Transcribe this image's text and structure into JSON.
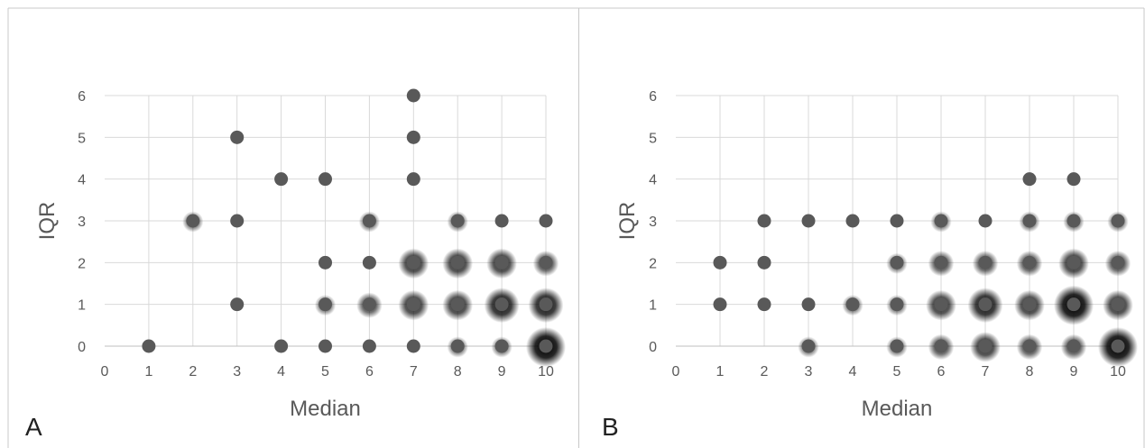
{
  "chart_data": [
    {
      "type": "scatter",
      "panel_label": "A",
      "title": "",
      "xlabel": "Median",
      "ylabel": "IQR",
      "xlim": [
        0,
        10
      ],
      "ylim": [
        0,
        6
      ],
      "xticks": [
        "0",
        "1",
        "2",
        "3",
        "4",
        "5",
        "6",
        "7",
        "8",
        "9",
        "10"
      ],
      "yticks": [
        "0",
        "1",
        "2",
        "3",
        "4",
        "5",
        "6"
      ],
      "grid": true,
      "legend": "none",
      "marker_color": "#595959",
      "points": [
        {
          "x": 1,
          "y": 0,
          "shadow": 0
        },
        {
          "x": 2,
          "y": 3,
          "shadow": 1
        },
        {
          "x": 3,
          "y": 1,
          "shadow": 0
        },
        {
          "x": 3,
          "y": 3,
          "shadow": 0
        },
        {
          "x": 3,
          "y": 5,
          "shadow": 0
        },
        {
          "x": 4,
          "y": 0,
          "shadow": 0
        },
        {
          "x": 4,
          "y": 4,
          "shadow": 0
        },
        {
          "x": 5,
          "y": 0,
          "shadow": 0
        },
        {
          "x": 5,
          "y": 1,
          "shadow": 1
        },
        {
          "x": 5,
          "y": 2,
          "shadow": 0
        },
        {
          "x": 5,
          "y": 4,
          "shadow": 0
        },
        {
          "x": 6,
          "y": 0,
          "shadow": 0
        },
        {
          "x": 6,
          "y": 1,
          "shadow": 2
        },
        {
          "x": 6,
          "y": 2,
          "shadow": 0
        },
        {
          "x": 6,
          "y": 3,
          "shadow": 1
        },
        {
          "x": 7,
          "y": 0,
          "shadow": 0
        },
        {
          "x": 7,
          "y": 1,
          "shadow": 3
        },
        {
          "x": 7,
          "y": 2,
          "shadow": 3
        },
        {
          "x": 7,
          "y": 4,
          "shadow": 0
        },
        {
          "x": 7,
          "y": 5,
          "shadow": 0
        },
        {
          "x": 7,
          "y": 6,
          "shadow": 0
        },
        {
          "x": 8,
          "y": 0,
          "shadow": 1
        },
        {
          "x": 8,
          "y": 1,
          "shadow": 3
        },
        {
          "x": 8,
          "y": 2,
          "shadow": 3
        },
        {
          "x": 8,
          "y": 3,
          "shadow": 1
        },
        {
          "x": 9,
          "y": 0,
          "shadow": 1
        },
        {
          "x": 9,
          "y": 1,
          "shadow": 4
        },
        {
          "x": 9,
          "y": 2,
          "shadow": 3
        },
        {
          "x": 9,
          "y": 3,
          "shadow": 0
        },
        {
          "x": 10,
          "y": 0,
          "shadow": 5
        },
        {
          "x": 10,
          "y": 1,
          "shadow": 4
        },
        {
          "x": 10,
          "y": 2,
          "shadow": 2
        },
        {
          "x": 10,
          "y": 3,
          "shadow": 0
        }
      ]
    },
    {
      "type": "scatter",
      "panel_label": "B",
      "title": "",
      "xlabel": "Median",
      "ylabel": "IQR",
      "xlim": [
        0,
        10
      ],
      "ylim": [
        0,
        6
      ],
      "xticks": [
        "0",
        "1",
        "2",
        "3",
        "4",
        "5",
        "6",
        "7",
        "8",
        "9",
        "10"
      ],
      "yticks": [
        "0",
        "1",
        "2",
        "3",
        "4",
        "5",
        "6"
      ],
      "grid": true,
      "legend": "none",
      "marker_color": "#595959",
      "points": [
        {
          "x": 1,
          "y": 1,
          "shadow": 0
        },
        {
          "x": 1,
          "y": 2,
          "shadow": 0
        },
        {
          "x": 2,
          "y": 1,
          "shadow": 0
        },
        {
          "x": 2,
          "y": 2,
          "shadow": 0
        },
        {
          "x": 2,
          "y": 3,
          "shadow": 0
        },
        {
          "x": 3,
          "y": 0,
          "shadow": 1
        },
        {
          "x": 3,
          "y": 1,
          "shadow": 0
        },
        {
          "x": 3,
          "y": 3,
          "shadow": 0
        },
        {
          "x": 4,
          "y": 1,
          "shadow": 1
        },
        {
          "x": 4,
          "y": 3,
          "shadow": 0
        },
        {
          "x": 5,
          "y": 0,
          "shadow": 1
        },
        {
          "x": 5,
          "y": 1,
          "shadow": 1
        },
        {
          "x": 5,
          "y": 2,
          "shadow": 1
        },
        {
          "x": 5,
          "y": 3,
          "shadow": 0
        },
        {
          "x": 6,
          "y": 0,
          "shadow": 2
        },
        {
          "x": 6,
          "y": 1,
          "shadow": 3
        },
        {
          "x": 6,
          "y": 2,
          "shadow": 2
        },
        {
          "x": 6,
          "y": 3,
          "shadow": 1
        },
        {
          "x": 7,
          "y": 0,
          "shadow": 3
        },
        {
          "x": 7,
          "y": 1,
          "shadow": 4
        },
        {
          "x": 7,
          "y": 2,
          "shadow": 2
        },
        {
          "x": 7,
          "y": 3,
          "shadow": 0
        },
        {
          "x": 8,
          "y": 0,
          "shadow": 2
        },
        {
          "x": 8,
          "y": 1,
          "shadow": 3
        },
        {
          "x": 8,
          "y": 2,
          "shadow": 2
        },
        {
          "x": 8,
          "y": 3,
          "shadow": 1
        },
        {
          "x": 8,
          "y": 4,
          "shadow": 0
        },
        {
          "x": 9,
          "y": 0,
          "shadow": 2
        },
        {
          "x": 9,
          "y": 1,
          "shadow": 5
        },
        {
          "x": 9,
          "y": 2,
          "shadow": 3
        },
        {
          "x": 9,
          "y": 3,
          "shadow": 1
        },
        {
          "x": 9,
          "y": 4,
          "shadow": 0
        },
        {
          "x": 10,
          "y": 0,
          "shadow": 5
        },
        {
          "x": 10,
          "y": 1,
          "shadow": 3
        },
        {
          "x": 10,
          "y": 2,
          "shadow": 2
        },
        {
          "x": 10,
          "y": 3,
          "shadow": 1
        }
      ]
    }
  ]
}
